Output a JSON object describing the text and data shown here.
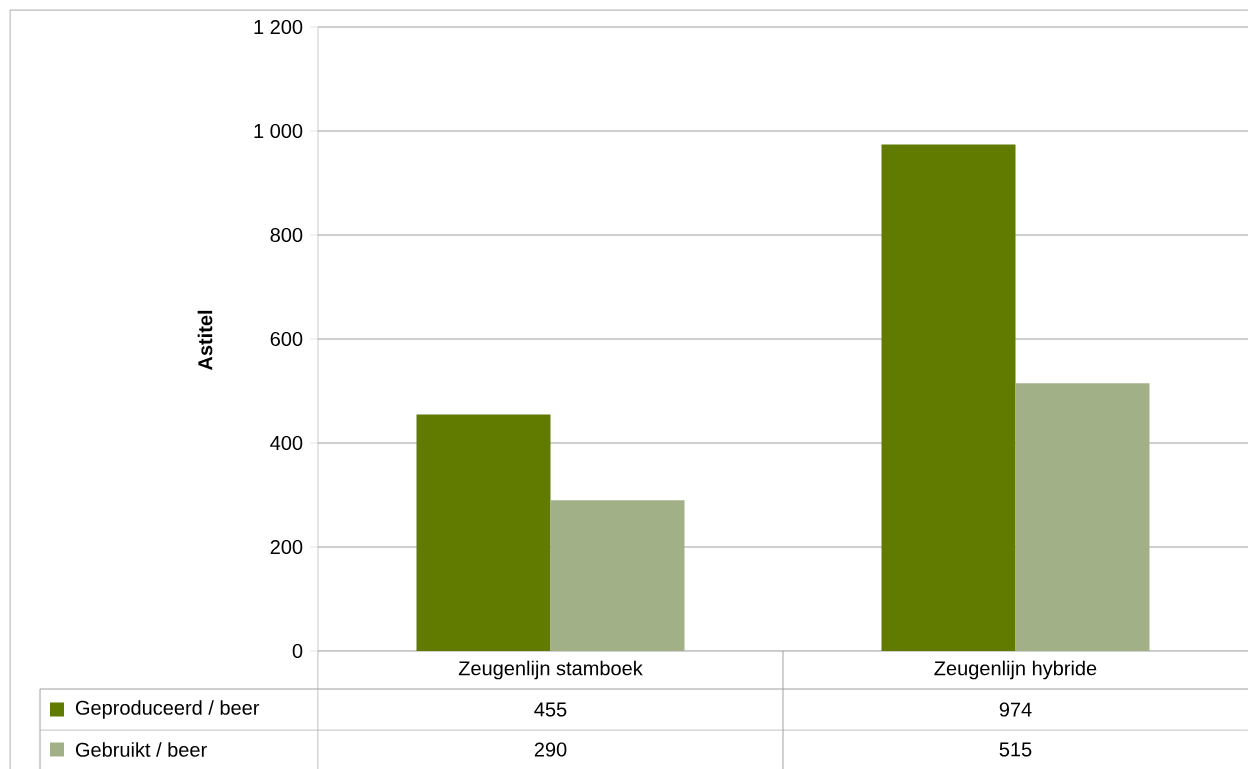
{
  "chart_data": {
    "type": "bar",
    "ylabel": "Astitel",
    "categories": [
      "Zeugenlijn stamboek",
      "Zeugenlijn hybride"
    ],
    "series": [
      {
        "name": "Geproduceerd / beer",
        "color": "#607b00",
        "values": [
          455,
          974
        ]
      },
      {
        "name": "Gebruikt / beer",
        "color": "#a2b088",
        "values": [
          290,
          515
        ]
      }
    ],
    "ylim": [
      0,
      1200
    ],
    "yticks": [
      0,
      200,
      400,
      600,
      800,
      {
        "value": 1000,
        "label": "1 000"
      },
      {
        "value": 1200,
        "label": "1 200"
      }
    ],
    "grid": "y",
    "legend": "bottom",
    "data_labels": true
  }
}
